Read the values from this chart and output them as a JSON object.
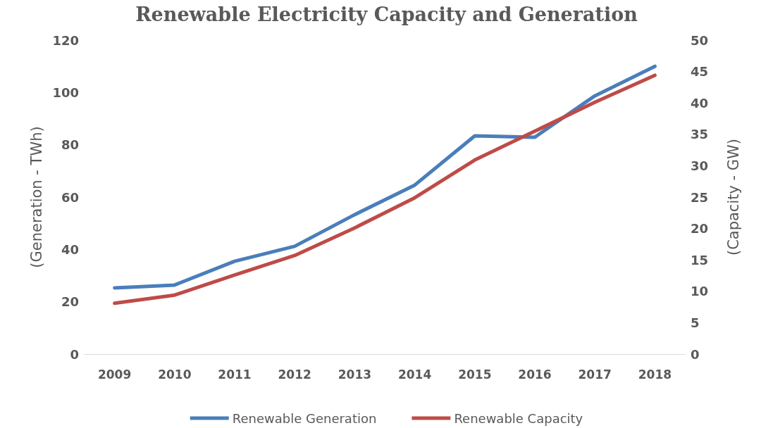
{
  "chart_data": {
    "type": "line",
    "title": "Renewable Electricity Capacity and Generation",
    "ylabel": "(Generation - TWh)",
    "y2label": "(Capacity - GW)",
    "categories": [
      "2009",
      "2010",
      "2011",
      "2012",
      "2013",
      "2014",
      "2015",
      "2016",
      "2017",
      "2018"
    ],
    "series": [
      {
        "name": "Renewable Generation",
        "color": "#4a7ebb",
        "values": [
          25.3,
          26.4,
          35.5,
          41.2,
          53.3,
          64.6,
          83.4,
          82.9,
          98.7,
          110
        ]
      },
      {
        "name": "Renewable Capacity",
        "color": "#be4b48",
        "axis": "y2",
        "values": [
          8.1,
          9.4,
          12.6,
          15.7,
          20.1,
          24.9,
          30.9,
          35.5,
          40.1,
          44.4
        ]
      }
    ],
    "ylim": [
      0,
      120
    ],
    "yticks": [
      0,
      20,
      40,
      60,
      80,
      100,
      120
    ],
    "y2lim": [
      0,
      50
    ],
    "y2ticks": [
      0,
      5,
      10,
      15,
      20,
      25,
      30,
      35,
      40,
      45,
      50
    ],
    "grid": false,
    "legend": "bottom",
    "marker": "none",
    "line_style": "solid"
  }
}
